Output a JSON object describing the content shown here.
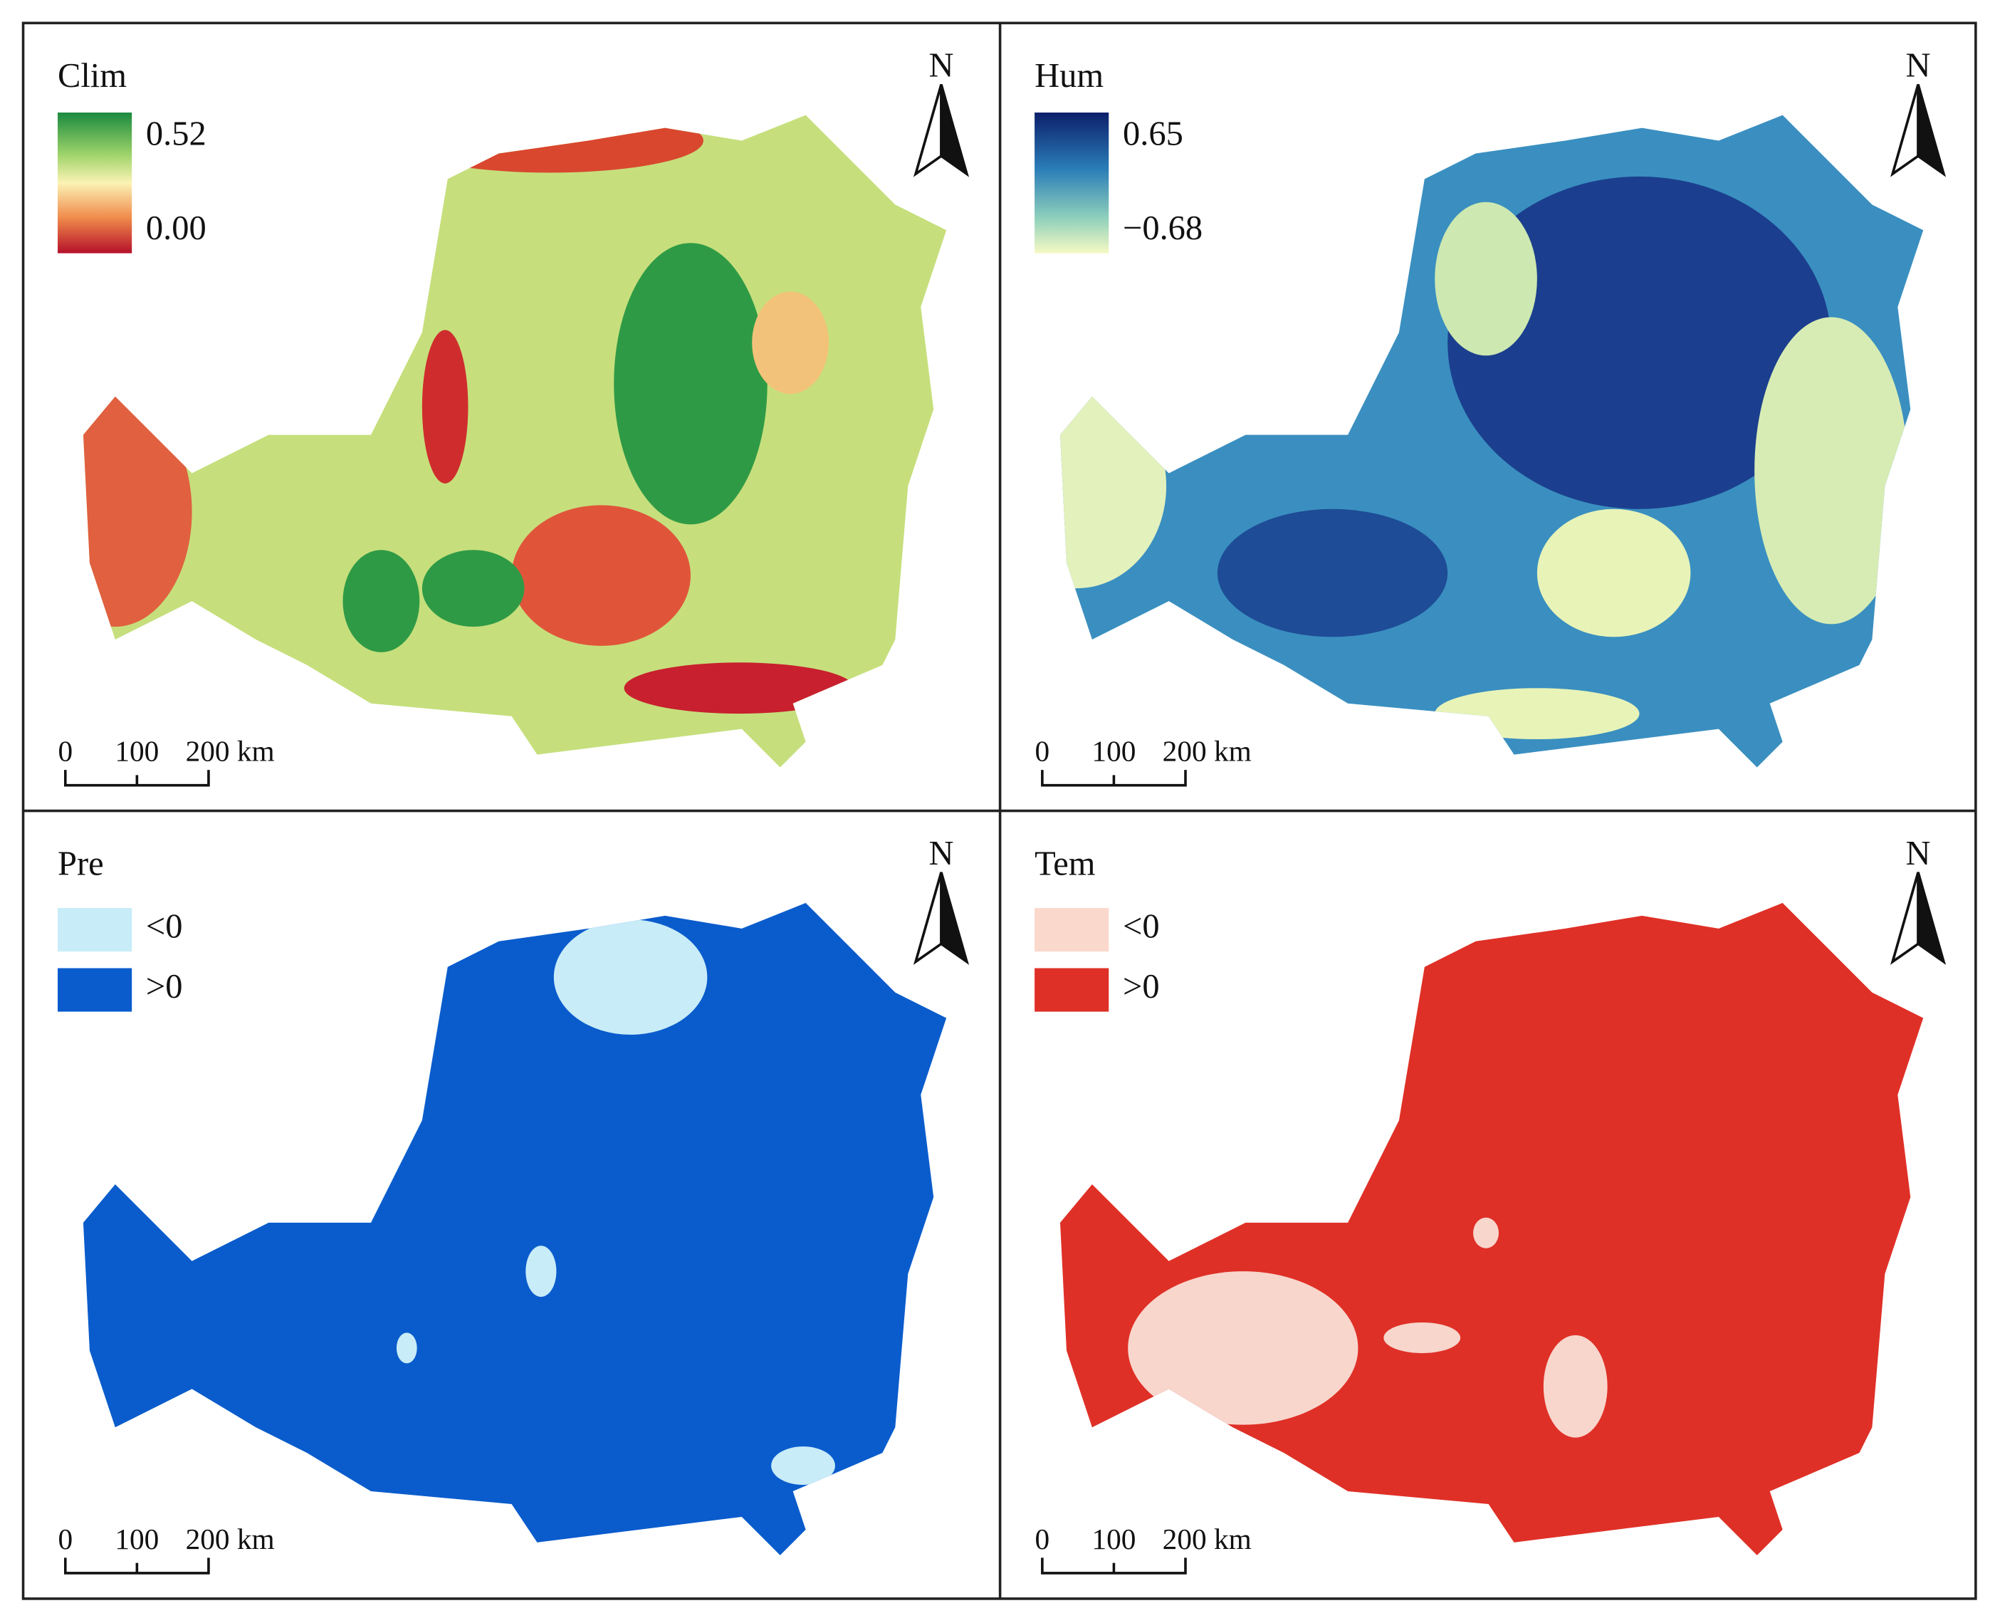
{
  "panels": [
    {
      "title": "Clim",
      "legend": [
        "0.52",
        "0.00"
      ],
      "north": "N",
      "scale": [
        "0",
        "100",
        "200 km"
      ]
    },
    {
      "title": "Hum",
      "legend": [
        "0.65",
        "−0.68"
      ],
      "north": "N",
      "scale": [
        "0",
        "100",
        "200 km"
      ]
    },
    {
      "title": "Pre",
      "legend": [
        "<0",
        ">0"
      ],
      "north": "N",
      "scale": [
        "0",
        "100",
        "200 km"
      ]
    },
    {
      "title": "Tem",
      "legend": [
        "<0",
        ">0"
      ],
      "north": "N",
      "scale": [
        "0",
        "100",
        "200 km"
      ]
    }
  ]
}
